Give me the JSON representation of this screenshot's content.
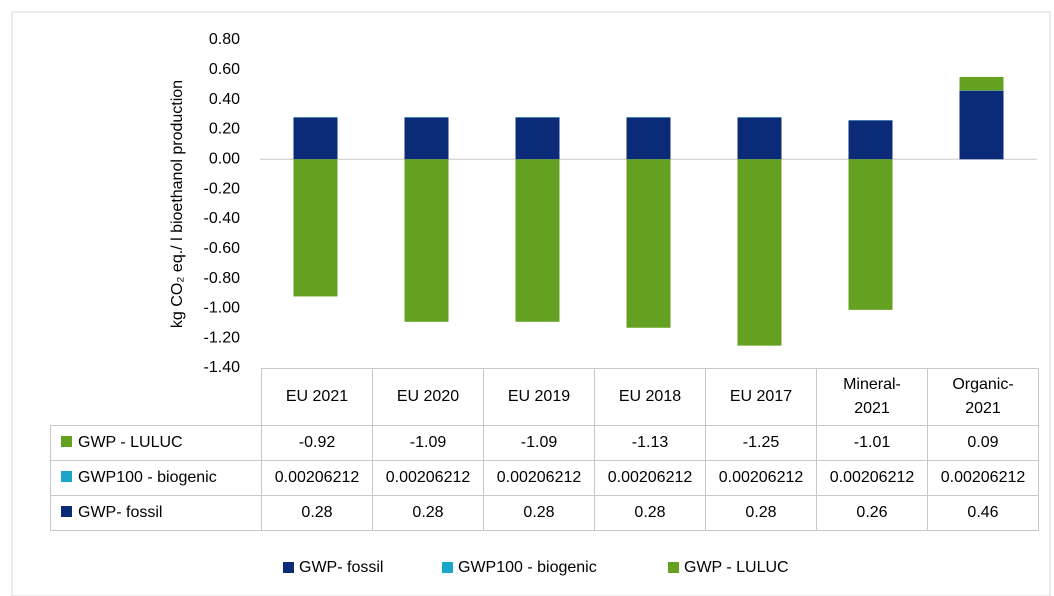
{
  "chart_data": {
    "type": "stacked_bar",
    "y_axis_label": "kg CO₂ eq./ l bioethanol production",
    "categories": [
      "EU 2021",
      "EU 2020",
      "EU 2019",
      "EU 2018",
      "EU 2017",
      "Mineral-2021",
      "Organic-2021"
    ],
    "series": [
      {
        "name": "GWP- fossil",
        "color": "#0b2a78",
        "values": [
          0.28,
          0.28,
          0.28,
          0.28,
          0.28,
          0.26,
          0.46
        ]
      },
      {
        "name": "GWP100 - biogenic",
        "color": "#1aa6c9",
        "values": [
          0.00206212,
          0.00206212,
          0.00206212,
          0.00206212,
          0.00206212,
          0.00206212,
          0.00206212
        ]
      },
      {
        "name": "GWP - LULUC",
        "color": "#65a121",
        "values": [
          -0.92,
          -1.09,
          -1.09,
          -1.13,
          -1.25,
          -1.01,
          0.09
        ]
      }
    ],
    "ylim": [
      -1.4,
      0.8
    ],
    "yticks": [
      {
        "value": 0.8,
        "label": "0.80"
      },
      {
        "value": 0.6,
        "label": "0.60"
      },
      {
        "value": 0.4,
        "label": "0.40"
      },
      {
        "value": 0.2,
        "label": "0.20"
      },
      {
        "value": 0,
        "label": "0.00"
      },
      {
        "value": -0.2,
        "label": "-0.20"
      },
      {
        "value": -0.4,
        "label": "-0.40"
      },
      {
        "value": -0.6,
        "label": "-0.60"
      },
      {
        "value": -0.8,
        "label": "-0.80"
      },
      {
        "value": -1,
        "label": "-1.00"
      },
      {
        "value": -1.2,
        "label": "-1.20"
      },
      {
        "value": -1.4,
        "label": "-1.40"
      }
    ],
    "grid": false,
    "legend": "bottom"
  }
}
